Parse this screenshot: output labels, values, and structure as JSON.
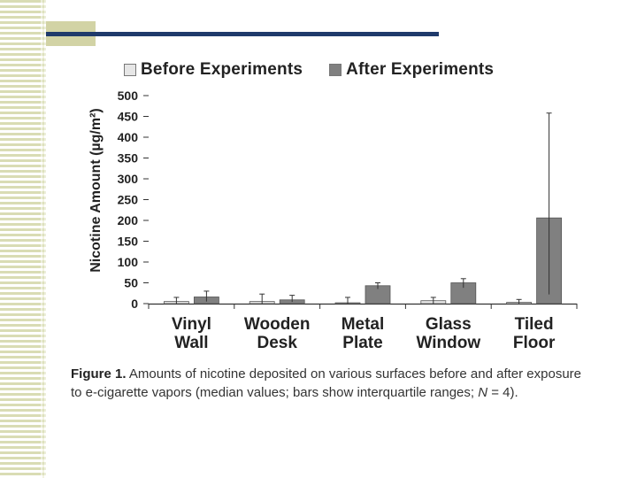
{
  "chart_data": {
    "type": "bar",
    "title": "",
    "xlabel": "",
    "ylabel": "Nicotine Amount (µg/m²)",
    "ylim": [
      0,
      500
    ],
    "yticks": [
      0,
      50,
      100,
      150,
      200,
      250,
      300,
      350,
      400,
      450,
      500
    ],
    "categories": [
      {
        "line1": "Vinyl",
        "line2": "Wall"
      },
      {
        "line1": "Wooden",
        "line2": "Desk"
      },
      {
        "line1": "Metal",
        "line2": "Plate"
      },
      {
        "line1": "Glass",
        "line2": "Window"
      },
      {
        "line1": "Tiled",
        "line2": "Floor"
      }
    ],
    "series": [
      {
        "name": "Before Experiments",
        "color": "#e6e6e6",
        "values": [
          5,
          5,
          2,
          7,
          3
        ],
        "err_low": [
          0,
          0,
          0,
          0,
          0
        ],
        "err_high": [
          15,
          23,
          15,
          15,
          10
        ]
      },
      {
        "name": "After Experiments",
        "color": "#808080",
        "values": [
          16,
          9,
          43,
          50,
          206
        ],
        "err_low": [
          5,
          4,
          35,
          38,
          22
        ],
        "err_high": [
          30,
          20,
          50,
          60,
          458
        ]
      }
    ],
    "legend_position": "top",
    "grid": false
  },
  "caption": {
    "figure_label": "Figure 1.",
    "text_a": " Amounts of nicotine deposited on various surfaces before and after exposure to e-cigarette vapors (median values; bars show interquartile ranges; ",
    "n_symbol": "N",
    "text_b": " = 4)."
  }
}
